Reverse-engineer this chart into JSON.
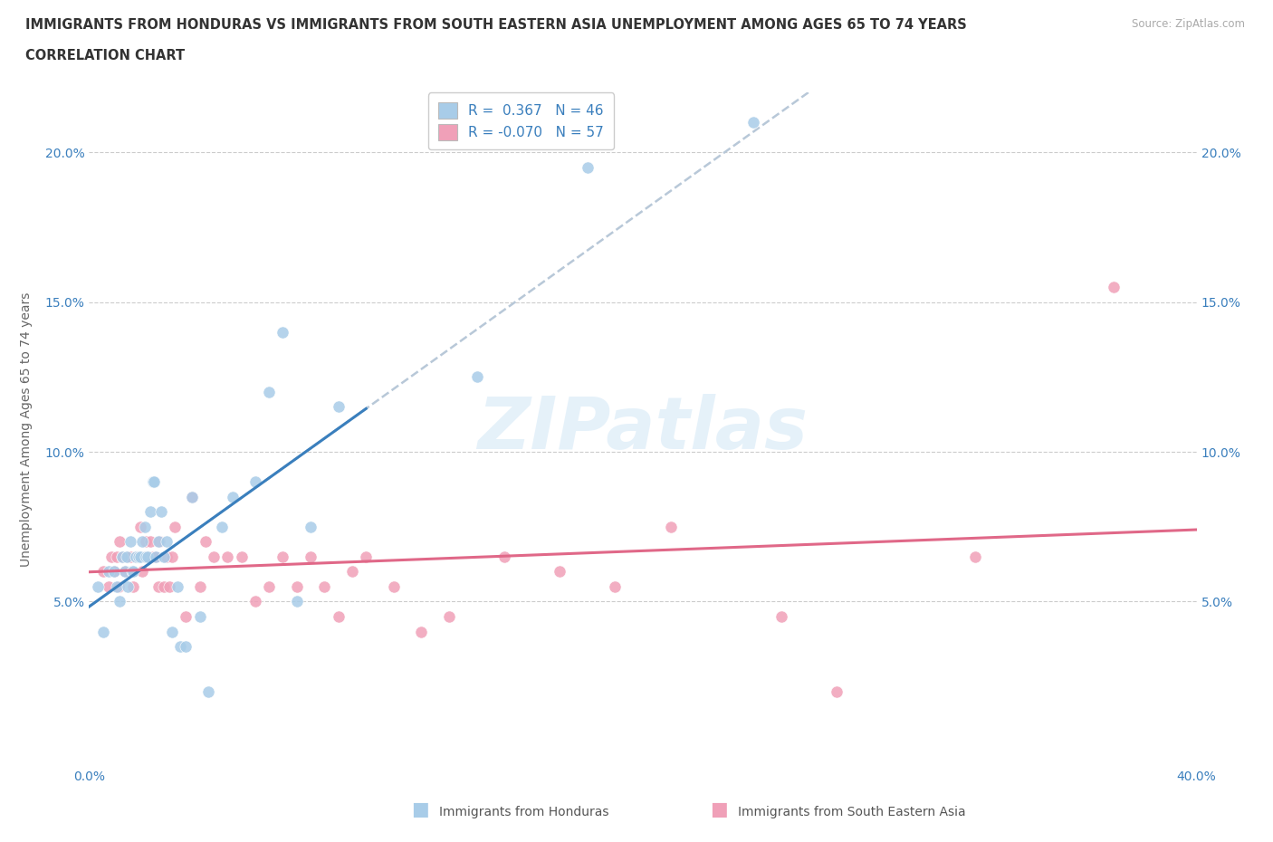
{
  "title_line1": "IMMIGRANTS FROM HONDURAS VS IMMIGRANTS FROM SOUTH EASTERN ASIA UNEMPLOYMENT AMONG AGES 65 TO 74 YEARS",
  "title_line2": "CORRELATION CHART",
  "source": "Source: ZipAtlas.com",
  "ylabel": "Unemployment Among Ages 65 to 74 years",
  "xlim": [
    0.0,
    40.0
  ],
  "ylim": [
    -0.5,
    22.0
  ],
  "watermark": "ZIPatlas",
  "color_blue": "#a8cce8",
  "color_blue_line": "#3a7fbd",
  "color_pink": "#f0a0b8",
  "color_pink_line": "#e06888",
  "color_dashed": "#b8c8d8",
  "honduras_x": [
    0.3,
    0.5,
    0.7,
    0.9,
    1.0,
    1.1,
    1.2,
    1.3,
    1.35,
    1.4,
    1.5,
    1.55,
    1.6,
    1.7,
    1.8,
    1.85,
    1.9,
    2.0,
    2.05,
    2.1,
    2.2,
    2.3,
    2.35,
    2.4,
    2.5,
    2.6,
    2.7,
    2.8,
    3.0,
    3.2,
    3.3,
    3.5,
    3.7,
    4.0,
    4.3,
    4.8,
    5.2,
    6.0,
    6.5,
    7.0,
    7.5,
    8.0,
    9.0,
    14.0,
    18.0,
    24.0
  ],
  "honduras_y": [
    5.5,
    4.0,
    6.0,
    6.0,
    5.5,
    5.0,
    6.5,
    6.0,
    6.5,
    5.5,
    7.0,
    6.0,
    6.0,
    6.5,
    6.5,
    6.5,
    7.0,
    7.5,
    6.5,
    6.5,
    8.0,
    9.0,
    9.0,
    6.5,
    7.0,
    8.0,
    6.5,
    7.0,
    4.0,
    5.5,
    3.5,
    3.5,
    8.5,
    4.5,
    2.0,
    7.5,
    8.5,
    9.0,
    12.0,
    14.0,
    5.0,
    7.5,
    11.5,
    12.5,
    19.5,
    21.0
  ],
  "sea_x": [
    0.5,
    0.7,
    0.8,
    0.9,
    1.0,
    1.05,
    1.1,
    1.2,
    1.3,
    1.4,
    1.5,
    1.55,
    1.6,
    1.7,
    1.8,
    1.85,
    1.9,
    2.0,
    2.05,
    2.1,
    2.2,
    2.3,
    2.4,
    2.5,
    2.55,
    2.7,
    2.8,
    2.9,
    3.0,
    3.1,
    3.5,
    3.7,
    4.0,
    4.2,
    4.5,
    5.0,
    5.5,
    6.0,
    6.5,
    7.0,
    7.5,
    8.0,
    8.5,
    9.0,
    9.5,
    10.0,
    11.0,
    12.0,
    13.0,
    15.0,
    17.0,
    19.0,
    21.0,
    25.0,
    27.0,
    32.0,
    37.0
  ],
  "sea_y": [
    6.0,
    5.5,
    6.5,
    6.0,
    6.5,
    5.5,
    7.0,
    6.5,
    6.0,
    6.5,
    6.5,
    6.0,
    5.5,
    6.5,
    6.5,
    7.5,
    6.0,
    6.5,
    7.0,
    6.5,
    7.0,
    6.5,
    6.5,
    5.5,
    7.0,
    5.5,
    6.5,
    5.5,
    6.5,
    7.5,
    4.5,
    8.5,
    5.5,
    7.0,
    6.5,
    6.5,
    6.5,
    5.0,
    5.5,
    6.5,
    5.5,
    6.5,
    5.5,
    4.5,
    6.0,
    6.5,
    5.5,
    4.0,
    4.5,
    6.5,
    6.0,
    5.5,
    7.5,
    4.5,
    2.0,
    6.5,
    15.5
  ]
}
